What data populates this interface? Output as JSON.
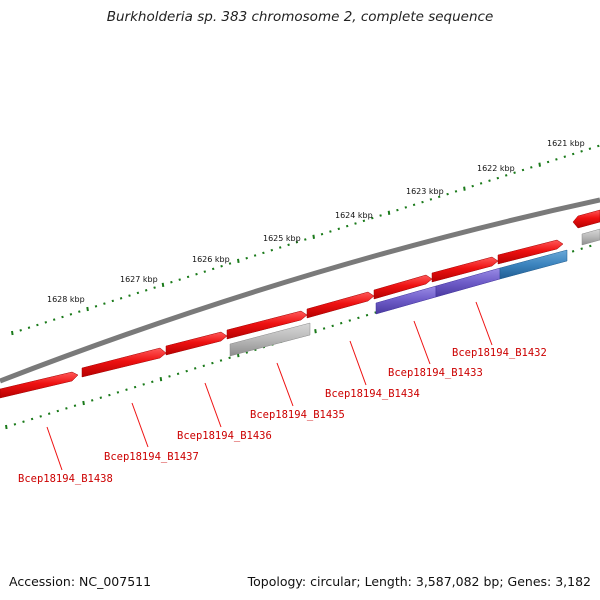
{
  "title": "Burkholderia sp. 383 chromosome 2, complete sequence",
  "ticks": [
    {
      "label": "1621 kbp"
    },
    {
      "label": "1622 kbp"
    },
    {
      "label": "1623 kbp"
    },
    {
      "label": "1624 kbp"
    },
    {
      "label": "1625 kbp"
    },
    {
      "label": "1626 kbp"
    },
    {
      "label": "1627 kbp"
    },
    {
      "label": "1628 kbp"
    }
  ],
  "genes": [
    {
      "label": "Bcep18194_B1432"
    },
    {
      "label": "Bcep18194_B1433"
    },
    {
      "label": "Bcep18194_B1434"
    },
    {
      "label": "Bcep18194_B1435"
    },
    {
      "label": "Bcep18194_B1436"
    },
    {
      "label": "Bcep18194_B1437"
    },
    {
      "label": "Bcep18194_B1438"
    }
  ],
  "colors": {
    "backbone": "#7a7a7a",
    "tick_marks": "#1a7a1a",
    "gene_red": "#ee1111",
    "gene_purple": "#6e5cc8",
    "gene_blue": "#3c84be",
    "gene_grey": "#b8b8b8",
    "label_red": "#cc0000"
  },
  "footer": {
    "accession": "Accession: NC_007511",
    "summary": "Topology: circular; Length: 3,587,082 bp; Genes: 3,182"
  }
}
